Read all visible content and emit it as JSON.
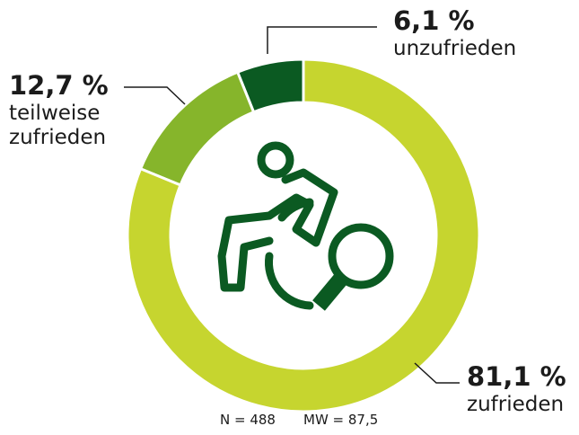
{
  "chart_data": {
    "type": "donut",
    "categories": [
      "zufrieden",
      "teilweise zufrieden",
      "unzufrieden"
    ],
    "values": [
      81.1,
      12.7,
      6.1
    ],
    "value_labels": [
      "81,1 %",
      "12,7 %",
      "6,1 %"
    ],
    "colors": [
      "#c6d52f",
      "#86b52b",
      "#0b5a22"
    ],
    "notes": [
      "N = 488",
      "MW = 87,5"
    ]
  }
}
